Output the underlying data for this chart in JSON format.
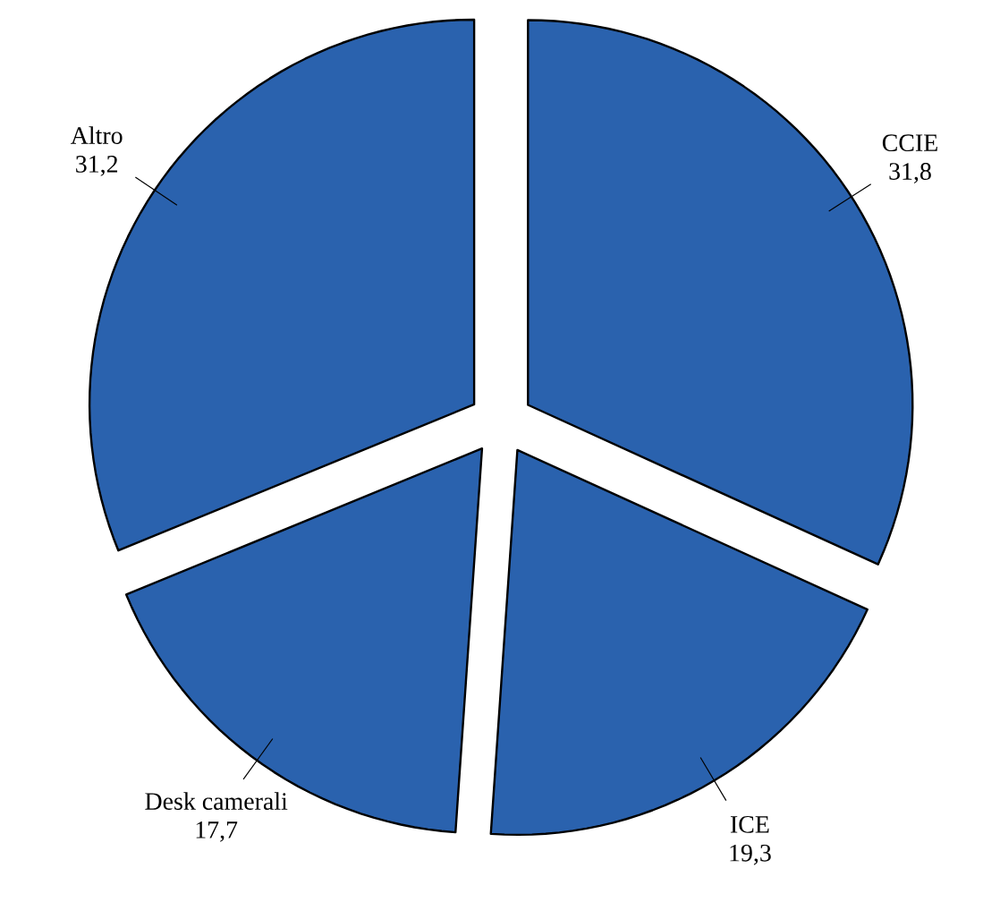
{
  "chart_data": {
    "type": "pie",
    "categories": [
      "CCIE",
      "ICE",
      "Desk camerali",
      "Altro"
    ],
    "values": [
      31.8,
      19.3,
      17.7,
      31.2
    ],
    "value_labels": [
      "31,8",
      "19,3",
      "17,7",
      "31,2"
    ],
    "colors": [
      "#2a62ae",
      "#2a62ae",
      "#2a62ae",
      "#2a62ae"
    ]
  }
}
